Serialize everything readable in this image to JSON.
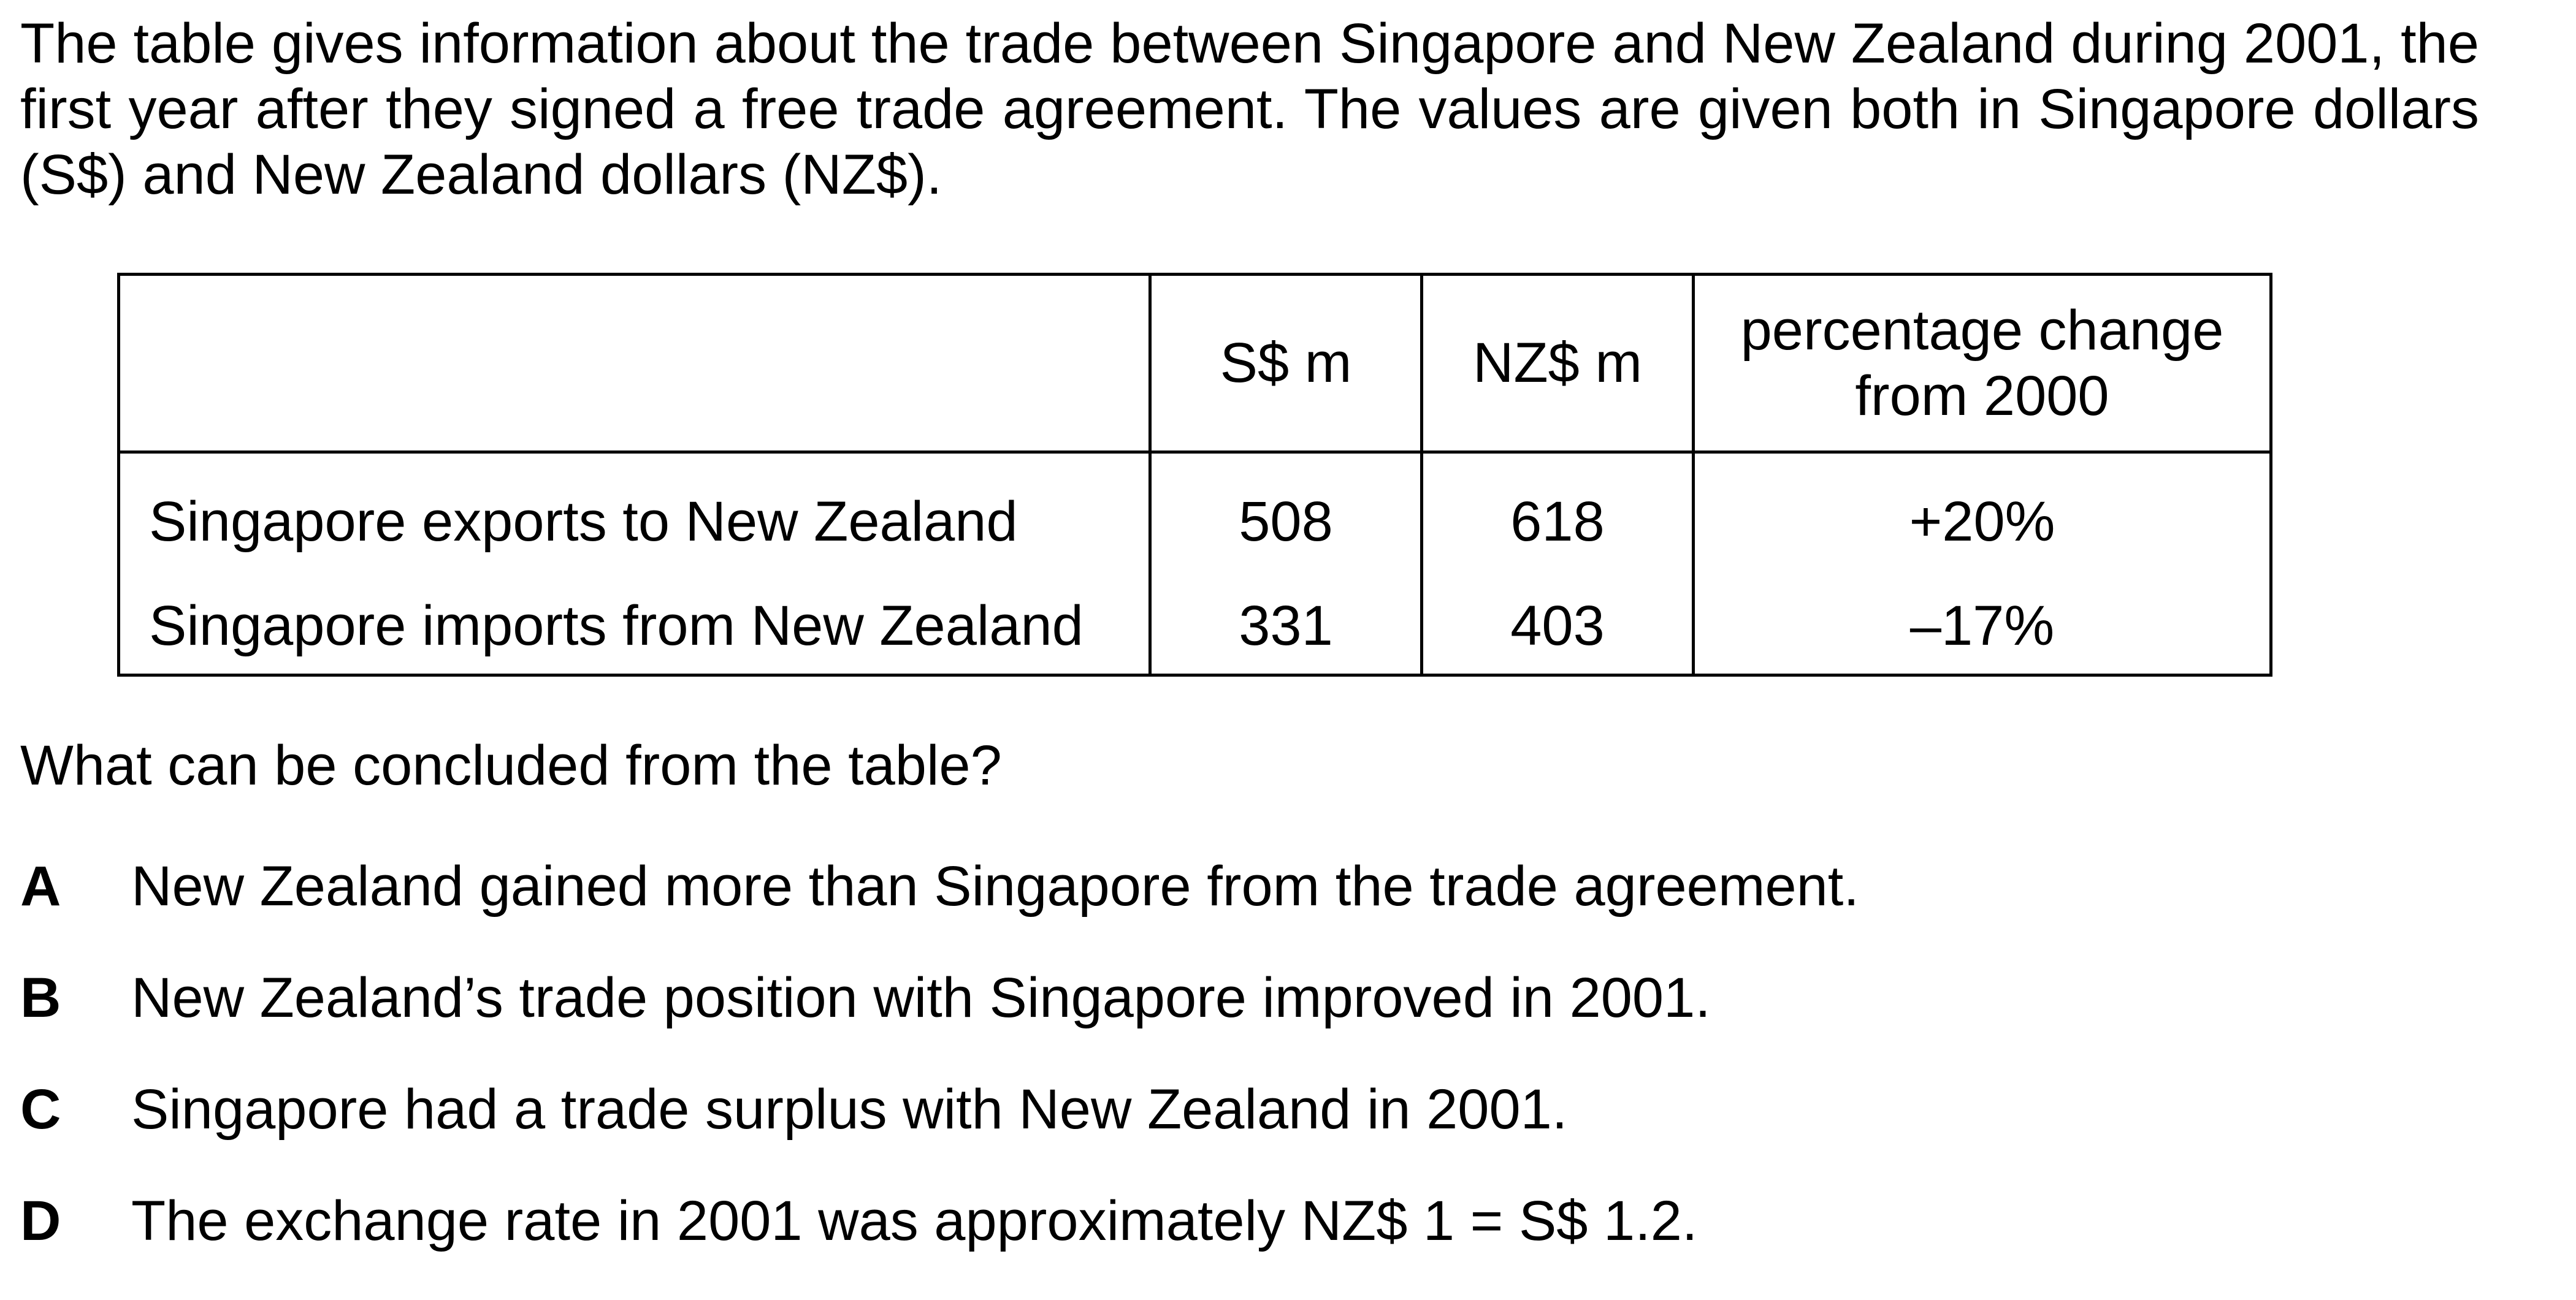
{
  "intro": "The table gives information about the trade between Singapore and New Zealand during 2001, the first year after they signed a free trade agreement. The values are given both in Singapore dollars (S$) and New Zealand dollars (NZ$).",
  "table": {
    "headers": {
      "label": "",
      "sgd": "S$ m",
      "nzd": "NZ$ m",
      "pct_line1": "percentage change",
      "pct_line2": "from 2000"
    },
    "rows": [
      {
        "label": "Singapore exports to New Zealand",
        "sgd": "508",
        "nzd": "618",
        "pct": "+20%"
      },
      {
        "label": "Singapore imports from New Zealand",
        "sgd": "331",
        "nzd": "403",
        "pct": "–17%"
      }
    ]
  },
  "question": "What can be concluded from the table?",
  "options": [
    {
      "letter": "A",
      "text": "New Zealand gained more than Singapore from the trade agreement."
    },
    {
      "letter": "B",
      "text": "New Zealand’s trade position with Singapore improved in 2001."
    },
    {
      "letter": "C",
      "text": "Singapore had a trade surplus with New Zealand in 2001."
    },
    {
      "letter": "D",
      "text": "The exchange rate in 2001 was approximately NZ$ 1 = S$ 1.2."
    }
  ]
}
